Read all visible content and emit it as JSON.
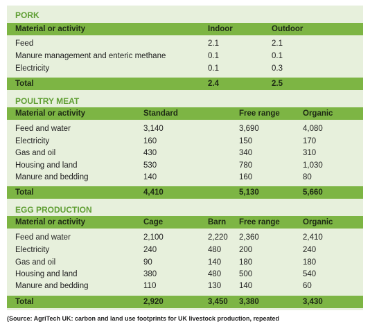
{
  "sections": [
    {
      "title": "PORK",
      "header": [
        "Material or activity",
        "Indoor",
        "Outdoor"
      ],
      "rows": [
        [
          "Feed",
          "2.1",
          "2.1"
        ],
        [
          "Manure management and enteric methane",
          "0.1",
          "0.1"
        ],
        [
          "Electricity",
          "0.1",
          "0.3"
        ]
      ],
      "total": [
        "Total",
        "2.4",
        "2.5"
      ]
    },
    {
      "title": "POULTRY MEAT",
      "header": [
        "Material or activity",
        "Standard",
        "Free range",
        "Organic"
      ],
      "rows": [
        [
          "Feed and water",
          "3,140",
          "3,690",
          "4,080"
        ],
        [
          "Electricity",
          "160",
          "150",
          "170"
        ],
        [
          "Gas and oil",
          "430",
          "340",
          "310"
        ],
        [
          "Housing and land",
          "530",
          "780",
          "1,030"
        ],
        [
          "Manure and bedding",
          "140",
          "160",
          "80"
        ]
      ],
      "total": [
        "Total",
        "4,410",
        "5,130",
        "5,660"
      ]
    },
    {
      "title": "EGG PRODUCTION",
      "header": [
        "Material or activity",
        "Cage",
        "Barn",
        "Free range",
        "Organic"
      ],
      "rows": [
        [
          "Feed and water",
          "2,100",
          "2,220",
          "2,360",
          "2,410"
        ],
        [
          "Electricity",
          "240",
          "480",
          "200",
          "240"
        ],
        [
          "Gas and oil",
          "90",
          "140",
          "180",
          "180"
        ],
        [
          "Housing and land",
          "380",
          "480",
          "500",
          "540"
        ],
        [
          "Manure and bedding",
          "110",
          "130",
          "140",
          "60"
        ]
      ],
      "total": [
        "Total",
        "2,920",
        "3,450",
        "3,380",
        "3,430"
      ]
    }
  ],
  "source": "(Source: AgriTech UK: carbon and land use footprints for UK livestock production, repeated"
}
